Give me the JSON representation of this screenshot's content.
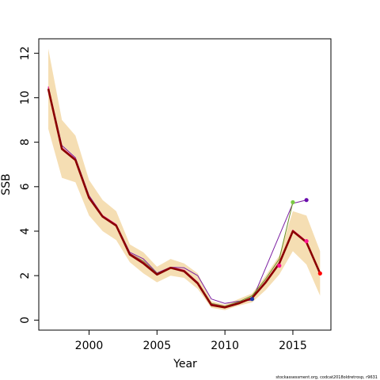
{
  "chart_data": {
    "type": "line",
    "xlabel": "Year",
    "ylabel": "SSB",
    "xlim": [
      1996.3,
      2017.8
    ],
    "ylim": [
      -0.45,
      12.65
    ],
    "x_ticks": [
      2000,
      2005,
      2010,
      2015
    ],
    "y_ticks": [
      0,
      2,
      4,
      6,
      8,
      10,
      12
    ],
    "grid": false,
    "legend": "none",
    "confidence_band": {
      "color": "#f5deb3",
      "x": [
        1997,
        1998,
        1999,
        2000,
        2001,
        2002,
        2003,
        2004,
        2005,
        2006,
        2007,
        2008,
        2009,
        2010,
        2011,
        2012,
        2013,
        2014,
        2015,
        2016,
        2017
      ],
      "lower": [
        8.6,
        6.4,
        6.2,
        4.7,
        4.0,
        3.6,
        2.6,
        2.1,
        1.7,
        2.0,
        1.9,
        1.4,
        0.55,
        0.45,
        0.65,
        0.8,
        1.35,
        2.05,
        3.1,
        2.5,
        1.1
      ],
      "upper": [
        12.2,
        9.0,
        8.3,
        6.3,
        5.4,
        4.9,
        3.4,
        3.05,
        2.4,
        2.75,
        2.55,
        2.1,
        0.85,
        0.7,
        0.95,
        1.2,
        2.0,
        2.9,
        4.9,
        4.7,
        3.1
      ]
    },
    "series": [
      {
        "color": "#8b0000",
        "x": [
          1997,
          1998,
          1999,
          2000,
          2001,
          2002,
          2003,
          2004,
          2005,
          2006,
          2007,
          2008,
          2009,
          2010,
          2011,
          2012,
          2013,
          2014,
          2015,
          2016,
          2017
        ],
        "values": [
          10.4,
          7.7,
          7.2,
          5.5,
          4.65,
          4.25,
          2.95,
          2.55,
          2.05,
          2.35,
          2.2,
          1.65,
          0.68,
          0.57,
          0.75,
          1.0,
          1.7,
          2.55,
          4.0,
          3.5,
          2.1
        ],
        "end_marker": "#ff0000"
      },
      {
        "color": "#ff1493",
        "x": [
          1997,
          1998,
          1999,
          2000,
          2001,
          2002,
          2003,
          2004,
          2005,
          2006,
          2007,
          2008,
          2009,
          2010,
          2011,
          2012,
          2013,
          2014,
          2015,
          2016
        ],
        "values": [
          10.5,
          7.75,
          7.25,
          5.55,
          4.7,
          4.3,
          3.0,
          2.6,
          2.08,
          2.38,
          2.25,
          1.7,
          0.72,
          0.6,
          0.78,
          1.02,
          1.75,
          2.6,
          4.05,
          3.55
        ],
        "end_marker": "#ff1493"
      },
      {
        "color": "#6b8e23",
        "x": [
          1997,
          1998,
          1999,
          2000,
          2001,
          2002,
          2003,
          2004,
          2005,
          2006,
          2007,
          2008,
          2009,
          2010,
          2011,
          2012,
          2013,
          2014,
          2015
        ],
        "values": [
          10.45,
          7.7,
          7.25,
          5.5,
          4.65,
          4.25,
          3.0,
          2.65,
          2.1,
          2.35,
          2.25,
          1.7,
          0.75,
          0.62,
          0.82,
          1.1,
          1.85,
          2.75,
          5.3
        ],
        "end_marker": "#7ac943"
      },
      {
        "color": "#7b1fa2",
        "x": [
          1997,
          1998,
          1999,
          2000,
          2001,
          2002,
          2003,
          2004,
          2005,
          2006,
          2007,
          2008,
          2009,
          2010,
          2011,
          2012,
          2013,
          2014,
          2015,
          2016
        ],
        "values": [
          10.5,
          7.85,
          7.3,
          5.6,
          4.7,
          4.3,
          3.05,
          2.75,
          2.12,
          2.38,
          2.35,
          2.0,
          0.95,
          0.75,
          0.85,
          0.9,
          null,
          null,
          5.25,
          5.4
        ],
        "end_marker": "#6a0dad"
      }
    ],
    "extra_points": [
      {
        "x": 2012,
        "y": 0.95,
        "color": "#1e3aa8"
      },
      {
        "x": 2014,
        "y": 2.45,
        "color": "#ff1493"
      }
    ],
    "footer": "stockassessment.org, codcat2018oldretrosp, r9631"
  }
}
